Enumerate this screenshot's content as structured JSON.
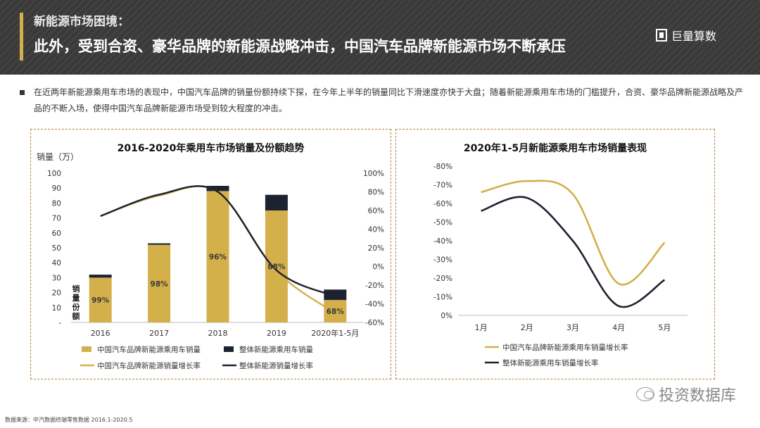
{
  "header": {
    "kicker": "新能源市场困境：",
    "headline": "此外，受到合资、豪华品牌的新能源战略冲击，中国汽车品牌新能源市场不断承压",
    "logo_text": "巨量算数"
  },
  "intro": "在近两年新能源乘用车市场的表现中，中国汽车品牌的销量份额持续下探，在今年上半年的销量同比下滑速度亦快于大盘；随着新能源乘用车市场的门槛提升，合资、豪华品牌新能源战略及产品的不断入场，使得中国汽车品牌新能源市场受到较大程度的冲击。",
  "colors": {
    "gold": "#d4b04b",
    "navy": "#1c2230",
    "header_bg": "#3a3a3a"
  },
  "chart_data": [
    {
      "type": "bar",
      "title": "2016-2020年乘用车市场销量及份额趋势",
      "ylabel": "销量（万）",
      "y2label": "",
      "share_label": "销量份额",
      "categories": [
        "2016",
        "2017",
        "2018",
        "2019",
        "2020年1-5月"
      ],
      "ylim": [
        0,
        100
      ],
      "y2lim": [
        -60,
        100
      ],
      "yticks": [
        "-",
        "10",
        "20",
        "30",
        "40",
        "50",
        "60",
        "70",
        "80",
        "90",
        "100"
      ],
      "y2ticks": [
        "-60%",
        "-40%",
        "-20%",
        "0%",
        "20%",
        "40%",
        "60%",
        "80%",
        "100%"
      ],
      "stacked": true,
      "series": [
        {
          "name": "中国汽车品牌新能源乘用车销量",
          "kind": "bar",
          "color": "#d4b04b",
          "values": [
            30,
            52,
            88,
            75,
            15
          ]
        },
        {
          "name": "整体新能源乘用车销量",
          "kind": "bar",
          "color": "#1c2230",
          "values": [
            2,
            1,
            3.5,
            10.5,
            7
          ]
        },
        {
          "name": "中国汽车品牌新能源销量增长率",
          "kind": "line",
          "color": "#d4b04b",
          "axis": "right",
          "values": [
            54,
            76,
            80,
            -5,
            -50
          ]
        },
        {
          "name": "整体新能源销量增长率",
          "kind": "line",
          "color": "#1c2230",
          "axis": "right",
          "values": [
            54,
            77,
            80,
            -4,
            -32
          ]
        }
      ],
      "share_labels": [
        "99%",
        "98%",
        "96%",
        "88%",
        "68%"
      ],
      "legend_position": "bottom"
    },
    {
      "type": "line",
      "title": "2020年1-5月新能源乘用车市场销量表现",
      "categories": [
        "1月",
        "2月",
        "3月",
        "4月",
        "5月"
      ],
      "ylim": [
        -80,
        0
      ],
      "yticks": [
        "0%",
        "-10%",
        "-20%",
        "-30%",
        "-40%",
        "-50%",
        "-60%",
        "-70%",
        "-80%"
      ],
      "inverted": true,
      "series": [
        {
          "name": "中国汽车品牌新能源乘用车销量增长率",
          "color": "#d4b04b",
          "values": [
            -66,
            -72,
            -65,
            -17,
            -39
          ]
        },
        {
          "name": "整体新能源乘用车销量增长率",
          "color": "#1c2230",
          "values": [
            -56,
            -63,
            -40,
            -5,
            -19
          ]
        }
      ],
      "legend_position": "bottom-left"
    }
  ],
  "source": "数据来源：中汽数据终端零售数据 2016.1-2020.5",
  "watermark": "投资数据库"
}
